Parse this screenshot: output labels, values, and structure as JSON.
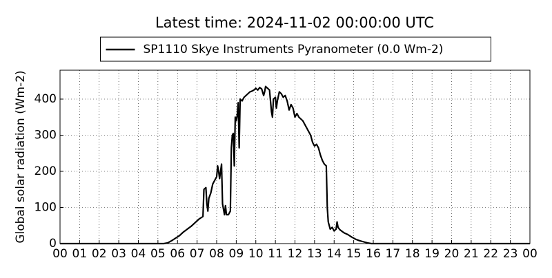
{
  "chart_data": {
    "type": "line",
    "title": "Latest time: 2024-11-02 00:00:00 UTC",
    "ylabel": "Global solar radiation (Wm-2)",
    "legend": "upper center",
    "grid": true,
    "xlim": [
      0,
      24
    ],
    "ylim": [
      0,
      480
    ],
    "yticks": [
      0,
      100,
      200,
      300,
      400
    ],
    "xticks": [
      {
        "value": 0,
        "label": "00"
      },
      {
        "value": 1,
        "label": "01"
      },
      {
        "value": 2,
        "label": "02"
      },
      {
        "value": 3,
        "label": "03"
      },
      {
        "value": 4,
        "label": "04"
      },
      {
        "value": 5,
        "label": "05"
      },
      {
        "value": 6,
        "label": "06"
      },
      {
        "value": 7,
        "label": "07"
      },
      {
        "value": 8,
        "label": "08"
      },
      {
        "value": 9,
        "label": "09"
      },
      {
        "value": 10,
        "label": "10"
      },
      {
        "value": 11,
        "label": "11"
      },
      {
        "value": 12,
        "label": "12"
      },
      {
        "value": 13,
        "label": "13"
      },
      {
        "value": 14,
        "label": "14"
      },
      {
        "value": 15,
        "label": "15"
      },
      {
        "value": 16,
        "label": "16"
      },
      {
        "value": 17,
        "label": "17"
      },
      {
        "value": 18,
        "label": "18"
      },
      {
        "value": 19,
        "label": "19"
      },
      {
        "value": 20,
        "label": "20"
      },
      {
        "value": 21,
        "label": "21"
      },
      {
        "value": 22,
        "label": "22"
      },
      {
        "value": 23,
        "label": "23"
      },
      {
        "value": 24,
        "label": "00"
      }
    ],
    "x": [
      0,
      5.3,
      5.5,
      5.7,
      5.9,
      6.1,
      6.3,
      6.5,
      6.7,
      6.9,
      7.1,
      7.3,
      7.35,
      7.45,
      7.5,
      7.55,
      7.6,
      7.7,
      7.8,
      7.9,
      8.0,
      8.05,
      8.1,
      8.15,
      8.2,
      8.25,
      8.3,
      8.35,
      8.4,
      8.45,
      8.5,
      8.6,
      8.7,
      8.75,
      8.8,
      8.85,
      8.9,
      8.95,
      9.0,
      9.05,
      9.1,
      9.15,
      9.2,
      9.3,
      9.4,
      9.5,
      9.6,
      9.7,
      9.8,
      9.9,
      10.0,
      10.1,
      10.2,
      10.3,
      10.4,
      10.45,
      10.5,
      10.6,
      10.7,
      10.8,
      10.85,
      10.9,
      11.0,
      11.05,
      11.1,
      11.2,
      11.3,
      11.4,
      11.5,
      11.6,
      11.7,
      11.8,
      11.9,
      12.0,
      12.1,
      12.2,
      12.4,
      12.6,
      12.8,
      12.9,
      13.0,
      13.1,
      13.2,
      13.3,
      13.4,
      13.5,
      13.6,
      13.65,
      13.7,
      13.8,
      13.9,
      14.0,
      14.1,
      14.15,
      14.2,
      14.3,
      14.5,
      14.7,
      14.9,
      15.1,
      15.3,
      15.5,
      15.7,
      15.9,
      24
    ],
    "series": [
      {
        "name": "SP1110 Skye Instruments Pyranometer (0.0 Wm-2)",
        "color": "#000000",
        "values": [
          0,
          0,
          2,
          8,
          15,
          22,
          32,
          40,
          48,
          58,
          68,
          75,
          150,
          155,
          110,
          90,
          125,
          140,
          165,
          175,
          185,
          215,
          200,
          180,
          200,
          220,
          110,
          95,
          80,
          105,
          80,
          80,
          90,
          265,
          300,
          305,
          215,
          350,
          340,
          355,
          390,
          265,
          400,
          395,
          405,
          410,
          415,
          420,
          422,
          425,
          430,
          425,
          432,
          428,
          410,
          420,
          435,
          430,
          425,
          365,
          350,
          400,
          405,
          375,
          395,
          420,
          415,
          405,
          410,
          395,
          370,
          385,
          375,
          350,
          360,
          350,
          340,
          320,
          300,
          280,
          270,
          275,
          265,
          245,
          230,
          220,
          215,
          100,
          60,
          40,
          45,
          35,
          40,
          60,
          45,
          38,
          30,
          25,
          18,
          12,
          8,
          5,
          2,
          0,
          0
        ]
      }
    ]
  }
}
